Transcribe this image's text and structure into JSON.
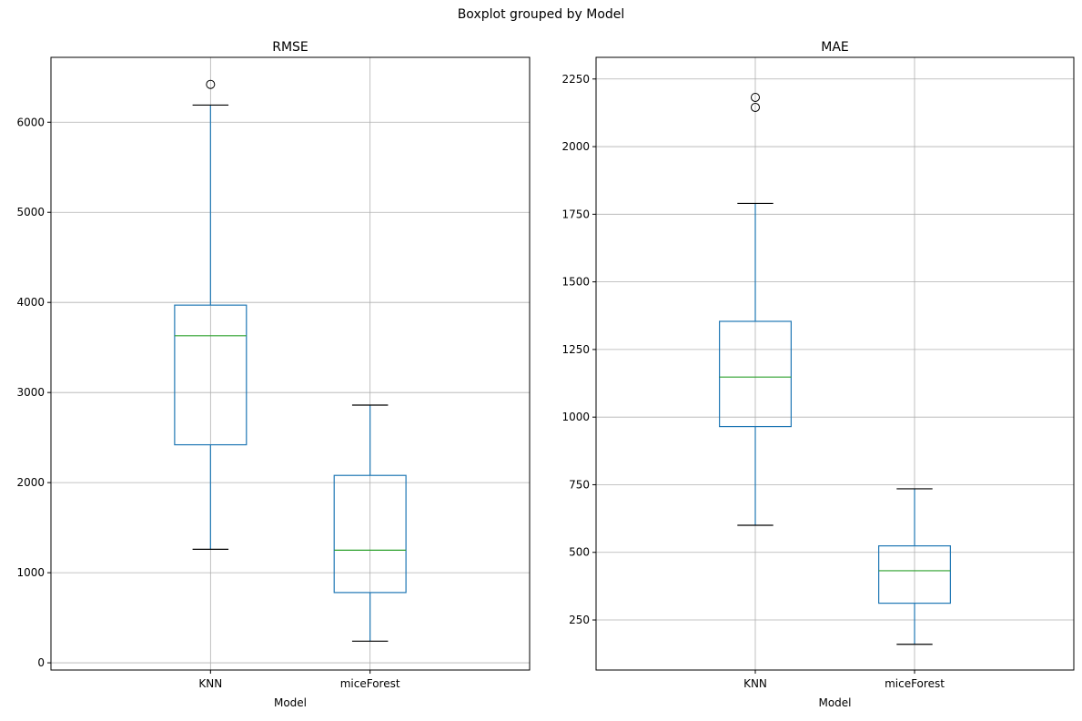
{
  "figure": {
    "suptitle": "Boxplot grouped by Model"
  },
  "colors": {
    "box": "#1f77b4",
    "median": "#2ca02c",
    "whisker_cap": "#000000",
    "grid": "#b0b0b0",
    "frame": "#000000"
  },
  "chart_data": [
    {
      "type": "box",
      "title": "RMSE",
      "xlabel": "Model",
      "ylabel": "",
      "categories": [
        "KNN",
        "miceForest"
      ],
      "ylim": [
        -80,
        6720
      ],
      "yticks": [
        0,
        1000,
        2000,
        3000,
        4000,
        5000,
        6000
      ],
      "ytick_labels": [
        "0",
        "1000",
        "2000",
        "3000",
        "4000",
        "5000",
        "6000"
      ],
      "grid": true,
      "boxes": [
        {
          "name": "KNN",
          "whisker_low": 1260,
          "q1": 2420,
          "median": 3630,
          "q3": 3970,
          "whisker_high": 6190,
          "outliers": [
            6420
          ]
        },
        {
          "name": "miceForest",
          "whisker_low": 240,
          "q1": 780,
          "median": 1250,
          "q3": 2080,
          "whisker_high": 2860,
          "outliers": []
        }
      ]
    },
    {
      "type": "box",
      "title": "MAE",
      "xlabel": "Model",
      "ylabel": "",
      "categories": [
        "KNN",
        "miceForest"
      ],
      "ylim": [
        65,
        2330
      ],
      "yticks": [
        250,
        500,
        750,
        1000,
        1250,
        1500,
        1750,
        2000,
        2250
      ],
      "ytick_labels": [
        "250",
        "500",
        "750",
        "1000",
        "1250",
        "1500",
        "1750",
        "2000",
        "2250"
      ],
      "grid": true,
      "boxes": [
        {
          "name": "KNN",
          "whisker_low": 600,
          "q1": 965,
          "median": 1148,
          "q3": 1354,
          "whisker_high": 1790,
          "outliers": [
            2145,
            2182
          ]
        },
        {
          "name": "miceForest",
          "whisker_low": 160,
          "q1": 312,
          "median": 432,
          "q3": 524,
          "whisker_high": 735,
          "outliers": []
        }
      ]
    }
  ]
}
